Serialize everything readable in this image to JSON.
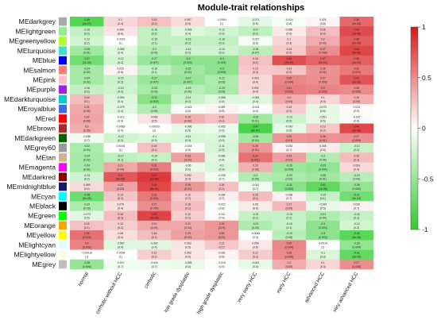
{
  "chart_data": {
    "type": "heatmap",
    "title": "Module-trait relationships",
    "columns": [
      "normal",
      "cirrhotic without HCC",
      "cirrhotic",
      "low grade dysplastic",
      "high grade dysplastic",
      "very early HCC",
      "early HCC",
      "advanced HCC",
      "very advanced HCC"
    ],
    "rows": [
      {
        "module": "MEdarkgrey",
        "color": "#a9a9a9",
        "cells": [
          [
            "-0.45",
            "(2e-07)"
          ],
          [
            "0.1",
            "(0.4)"
          ],
          [
            "0.15",
            "(0.2)"
          ],
          [
            "0.087",
            "(0.5)"
          ],
          [
            "-0.0054",
            "(1)"
          ],
          [
            "-0.071",
            "(0.5)"
          ],
          [
            "-0.024",
            "(0.8)"
          ],
          [
            "0.025",
            "(0.8)"
          ],
          [
            "0.36",
            "(2e-04)"
          ]
        ]
      },
      {
        "module": "MElightgreen",
        "color": "#90ee90",
        "cells": [
          [
            "-0.16",
            "(0.2)"
          ],
          [
            "0.064",
            "(0.6)"
          ],
          [
            "-0.16",
            "(0.2)"
          ],
          [
            "-0.093",
            "(0.4)"
          ],
          [
            "-0.12",
            "(0.3)"
          ],
          [
            "-0.17",
            "(0.1)"
          ],
          [
            "0.056",
            "(0.6)"
          ],
          [
            "0.16",
            "(0.2)"
          ],
          [
            "0.43",
            "(1e-05)"
          ]
        ]
      },
      {
        "module": "MEgreenyellow",
        "color": "#adff2f",
        "cells": [
          [
            "-0.12",
            "(0.2)"
          ],
          [
            "-0.0023",
            "(1)"
          ],
          [
            "-0.16",
            "(0.1)"
          ],
          [
            "-0.16",
            "(0.2)"
          ],
          [
            "-0.16",
            "(0.1)"
          ],
          [
            "-0.027",
            "(0.8)"
          ],
          [
            "0.1",
            "(0.3)"
          ],
          [
            "0.2",
            "(0.06)"
          ],
          [
            "0.39",
            "(9e-05)"
          ]
        ]
      },
      {
        "module": "MEturquoise",
        "color": "#40e0d0",
        "cells": [
          [
            "-0.25",
            "(0.01)"
          ],
          [
            "-0.086",
            "(0.4)"
          ],
          [
            "-0.2",
            "(0.05)"
          ],
          [
            "-0.13",
            "(0.2)"
          ],
          [
            "-0.13",
            "(0.2)"
          ],
          [
            "-0.18",
            "(0.07)"
          ],
          [
            "0.13",
            "(0.2)"
          ],
          [
            "0.27",
            "(0.008)"
          ],
          [
            "0.44",
            "(6e-06)"
          ]
        ]
      },
      {
        "module": "MEblue",
        "color": "#0000ff",
        "cells": [
          [
            "-0.37",
            "(2e-04)"
          ],
          [
            "-0.12",
            "(0.2)"
          ],
          [
            "-0.27",
            "(0.007)"
          ],
          [
            "-0.3",
            "(0.003)"
          ],
          [
            "-0.3",
            "(0.003)"
          ],
          [
            "0.15",
            "(0.1)"
          ],
          [
            "0.42",
            "(2e-05)"
          ],
          [
            "0.37",
            "(2e-04)"
          ],
          [
            "0.38",
            "(1e-04)"
          ]
        ]
      },
      {
        "module": "MEsalmon",
        "color": "#fa8072",
        "cells": [
          [
            "-0.24",
            "(0.02)"
          ],
          [
            "0.029",
            "(0.8)"
          ],
          [
            "-0.16",
            "(0.1)"
          ],
          [
            "-0.25",
            "(0.01)"
          ],
          [
            "-0.3",
            "(0.003)"
          ],
          [
            "0.13",
            "(0.2)"
          ],
          [
            "0.14",
            "(0.2)"
          ],
          [
            "0.26",
            "(0.01)"
          ],
          [
            "0.32",
            "(0.001)"
          ]
        ]
      },
      {
        "module": "MEpink",
        "color": "#ffc0cb",
        "cells": [
          [
            "-0.24",
            "(0.02)"
          ],
          [
            "-0.14",
            "(0.2)"
          ],
          [
            "-0.27",
            "(0.007)"
          ],
          [
            "-0.27",
            "(0.007)"
          ],
          [
            "-0.22",
            "(0.03)"
          ],
          [
            "0.093",
            "(0.4)"
          ],
          [
            "0.29",
            "(0.004)"
          ],
          [
            "0.27",
            "(0.008)"
          ],
          [
            "0.41",
            "(3e-05)"
          ]
        ]
      },
      {
        "module": "MEpurple",
        "color": "#a020f0",
        "cells": [
          [
            "-0.16",
            "(0.1)"
          ],
          [
            "-0.13",
            "(0.2)"
          ],
          [
            "-0.23",
            "(0.03)"
          ],
          [
            "-0.19",
            "(0.06)"
          ],
          [
            "-0.23",
            "(0.03)"
          ],
          [
            "0.092",
            "(0.4)"
          ],
          [
            "0.31",
            "(0.002)"
          ],
          [
            "0.3",
            "(0.003)"
          ],
          [
            "0.28",
            "(0.005)"
          ]
        ]
      },
      {
        "module": "MEdarkturquoise",
        "color": "#00ced1",
        "cells": [
          [
            "0.16",
            "(0.1)"
          ],
          [
            "-0.094",
            "(0.4)"
          ],
          [
            "-0.31",
            "(0.002)"
          ],
          [
            "-0.14",
            "(0.2)"
          ],
          [
            "-0.088",
            "(0.4)"
          ],
          [
            "-0.084",
            "(0.4)"
          ],
          [
            "0.2",
            "(0.04)"
          ],
          [
            "0.1",
            "(0.3)"
          ],
          [
            "0.19",
            "(0.06)"
          ]
        ]
      },
      {
        "module": "MEroyalblue",
        "color": "#4169e1",
        "cells": [
          [
            "0.21",
            "(0.04)"
          ],
          [
            "-0.079",
            "(0.4)"
          ],
          [
            "-0.2",
            "(0.05)"
          ],
          [
            "-0.023",
            "(0.8)"
          ],
          [
            "0.029",
            "(0.8)"
          ],
          [
            "-0.014",
            "(0.9)"
          ],
          [
            "0.12",
            "(0.2)"
          ],
          [
            "-0.072",
            "(0.5)"
          ],
          [
            "0.012",
            "(0.9)"
          ]
        ]
      },
      {
        "module": "MEred",
        "color": "#ff0000",
        "cells": [
          [
            "0.22",
            "(0.03)"
          ],
          [
            "-0.012",
            "(0.9)"
          ],
          [
            "0.066",
            "(0.5)"
          ],
          [
            "0.19",
            "(0.06)"
          ],
          [
            "0.15",
            "(0.1)"
          ],
          [
            "-0.25",
            "(0.01)"
          ],
          [
            "-0.13",
            "(0.2)"
          ],
          [
            "-0.061",
            "(0.5)"
          ],
          [
            "-0.022",
            "(0.8)"
          ]
        ]
      },
      {
        "module": "MEbrown",
        "color": "#a52a2a",
        "cells": [
          [
            "0.2",
            "(0.05)"
          ],
          [
            "-0.0083",
            "(0.9)"
          ],
          [
            "-0.00053",
            "(1)"
          ],
          [
            "-0.066",
            "(0.5)"
          ],
          [
            "-0.052",
            "(0.6)"
          ],
          [
            "-0.47",
            "(9e-07)"
          ],
          [
            "-0.067",
            "(0.5)"
          ],
          [
            "0.13",
            "(0.2)"
          ],
          [
            "0.44",
            "(6e-06)"
          ]
        ]
      },
      {
        "module": "MEdarkgreen",
        "color": "#006400",
        "cells": [
          [
            "-0.038",
            "(0.7)"
          ],
          [
            "-0.12",
            "(0.2)"
          ],
          [
            "-0.1",
            "(0.3)"
          ],
          [
            "-0.11",
            "(0.3)"
          ],
          [
            "-0.096",
            "(0.3)"
          ],
          [
            "-0.25",
            "(0.01)"
          ],
          [
            "0.25",
            "(0.01)"
          ],
          [
            "0.26",
            "(0.01)"
          ],
          [
            "0.27",
            "(0.008)"
          ]
        ]
      },
      {
        "module": "MEgrey60",
        "color": "#999999",
        "cells": [
          [
            "-0.22",
            "(0.03)"
          ],
          [
            "0.0045",
            "(1)"
          ],
          [
            "0.15",
            "(0.1)"
          ],
          [
            "-0.018",
            "(0.9)"
          ],
          [
            "-0.11",
            "(0.3)"
          ],
          [
            "0.25",
            "(0.01)"
          ],
          [
            "0.033",
            "(0.7)"
          ],
          [
            "0.048",
            "(0.6)"
          ],
          [
            "-0.14",
            "(0.2)"
          ]
        ]
      },
      {
        "module": "MEtan",
        "color": "#d2b48c",
        "cells": [
          [
            "-0.24",
            "(0.02)"
          ],
          [
            "-0.17",
            "(0.1)"
          ],
          [
            "-0.15",
            "(0.1)"
          ],
          [
            "0.23",
            "(0.02)"
          ],
          [
            "-0.081",
            "(0.4)"
          ],
          [
            "0.34",
            "(0.001)"
          ],
          [
            "0.23",
            "(0.02)"
          ],
          [
            "-0.2",
            "(0.06)"
          ],
          [
            "0.16",
            "(0.1)"
          ]
        ]
      },
      {
        "module": "MEmagenta",
        "color": "#ff00ff",
        "cells": [
          [
            "-0.24",
            "(0.02)"
          ],
          [
            "0.21",
            "(0.04)"
          ],
          [
            "0.31",
            "(0.002)"
          ],
          [
            "-0.06",
            "(0.6)"
          ],
          [
            "-0.1",
            "(0.3)"
          ],
          [
            "0.19",
            "(0.06)"
          ],
          [
            "-0.26",
            "(0.009)"
          ],
          [
            "-0.29",
            "(0.004)"
          ],
          [
            "0.093",
            "(0.4)"
          ]
        ]
      },
      {
        "module": "MEdarkred",
        "color": "#8b0000",
        "cells": [
          [
            "-0.13",
            "(0.2)"
          ],
          [
            "0.4",
            "(5e-05)"
          ],
          [
            "0.47",
            "(1e-06)"
          ],
          [
            "0.092",
            "(0.4)"
          ],
          [
            "-0.035",
            "(0.7)"
          ],
          [
            "-0.2",
            "(0.05)"
          ],
          [
            "-0.23",
            "(0.02)"
          ],
          [
            "-0.25",
            "(0.01)"
          ],
          [
            "-0.19",
            "(0.06)"
          ]
        ]
      },
      {
        "module": "MEmidnightblue",
        "color": "#191970",
        "cells": [
          [
            "0.089",
            "(0.4)"
          ],
          [
            "0.22",
            "(0.03)"
          ],
          [
            "0.44",
            "(6e-06)"
          ],
          [
            "0.25",
            "(0.01)"
          ],
          [
            "0.15",
            "(0.1)"
          ],
          [
            "-0.041",
            "(0.7)"
          ],
          [
            "-0.31",
            "(0.002)"
          ],
          [
            "-0.42",
            "(2e-05)"
          ],
          [
            "-0.28",
            "(0.006)"
          ]
        ]
      },
      {
        "module": "MEcyan",
        "color": "#00ffff",
        "cells": [
          [
            "-0.38",
            "(9e-05)"
          ],
          [
            "0.14",
            "(0.2)"
          ],
          [
            "0.32",
            "(0.001)"
          ],
          [
            "0.12",
            "(0.2)"
          ],
          [
            "0.038",
            "(0.7)"
          ],
          [
            "0.16",
            "(0.1)"
          ],
          [
            "0.038",
            "(0.7)"
          ],
          [
            "-0.15",
            "(0.1)"
          ],
          [
            "-0.37",
            "(2e-04)"
          ]
        ]
      },
      {
        "module": "MEblack",
        "color": "#000000",
        "cells": [
          [
            "-0.22",
            "(0.03)"
          ],
          [
            "0.079",
            "(0.4)"
          ],
          [
            "0.27",
            "(0.006)"
          ],
          [
            "0.16",
            "(0.1)"
          ],
          [
            "-0.022",
            "(0.8)"
          ],
          [
            "0.05",
            "(0.6)"
          ],
          [
            "0.17",
            "(0.09)"
          ],
          [
            "-0.064",
            "(0.5)"
          ],
          [
            "0.036",
            "(0.7)"
          ]
        ]
      },
      {
        "module": "MEgreen",
        "color": "#00ff00",
        "cells": [
          [
            "-0.073",
            "(0.5)"
          ],
          [
            "0.16",
            "(0.1)"
          ],
          [
            "0.45",
            "(3e-06)"
          ],
          [
            "0.12",
            "(0.2)"
          ],
          [
            "0.012",
            "(0.9)"
          ],
          [
            "-0.15",
            "(0.1)"
          ],
          [
            "-0.15",
            "(0.1)"
          ],
          [
            "-0.21",
            "(0.04)"
          ],
          [
            "-0.15",
            "(0.1)"
          ]
        ]
      },
      {
        "module": "MEorange",
        "color": "#ffa500",
        "cells": [
          [
            "0.15",
            "(0.1)"
          ],
          [
            "0.12",
            "(0.2)"
          ],
          [
            "0.21",
            "(0.04)"
          ],
          [
            "0.21",
            "(0.04)"
          ],
          [
            "0.25",
            "(0.01)"
          ],
          [
            "-0.21",
            "(0.03)"
          ],
          [
            "-0.15",
            "(0.1)"
          ],
          [
            "-0.3",
            "(0.003)"
          ],
          [
            "-0.12",
            "(0.2)"
          ]
        ]
      },
      {
        "module": "MEyellow",
        "color": "#ffff00",
        "cells": [
          [
            "0.34",
            "(0.001)"
          ],
          [
            "0.08",
            "(0.4)"
          ],
          [
            "0.16",
            "(0.1)"
          ],
          [
            "0.23",
            "(0.02)"
          ],
          [
            "0.25",
            "(0.01)"
          ],
          [
            "-0.0088",
            "(0.9)"
          ],
          [
            "-0.19",
            "(0.06)"
          ],
          [
            "-0.3",
            "(0.003)"
          ],
          [
            "-0.44",
            "(2e-06)"
          ]
        ]
      },
      {
        "module": "MElightcyan",
        "color": "#e0ffff",
        "cells": [
          [
            "0.3",
            "(0.002)"
          ],
          [
            "-0.087",
            "(0.4)"
          ],
          [
            "-0.087",
            "(0.4)"
          ],
          [
            "0.062",
            "(0.5)"
          ],
          [
            "0.13",
            "(0.2)"
          ],
          [
            "0.059",
            "(0.6)"
          ],
          [
            "0.29",
            "(0.004)"
          ],
          [
            "-0.0019",
            "(1)"
          ],
          [
            "-0.29",
            "(0.004)"
          ]
        ]
      },
      {
        "module": "MElightyellow",
        "color": "#ffffe0",
        "cells": [
          [
            "-0.00016",
            "(1)"
          ],
          [
            "-0.0034",
            "(1)"
          ],
          [
            "0.12",
            "(0.2)"
          ],
          [
            "0.062",
            "(0.5)"
          ],
          [
            "0.028",
            "(0.8)"
          ],
          [
            "0.12",
            "(0.2)"
          ],
          [
            "0.28",
            "(0.006)"
          ],
          [
            "-0.1",
            "(0.3)"
          ],
          [
            "-0.41",
            "(3e-05)"
          ]
        ]
      },
      {
        "module": "MEgrey",
        "color": "#bebebe",
        "cells": [
          [
            "-0.28",
            "(0.006)"
          ],
          [
            "-0.037",
            "(0.7)"
          ],
          [
            "-0.041",
            "(0.7)"
          ],
          [
            "-0.055",
            "(0.6)"
          ],
          [
            "-0.016",
            "(0.9)"
          ],
          [
            "-0.062",
            "(0.5)"
          ],
          [
            "0.2",
            "(0.05)"
          ],
          [
            "0.1",
            "(0.3)"
          ],
          [
            "0.27",
            "(0.008)"
          ]
        ]
      }
    ],
    "colorbar": {
      "ticks": [
        1,
        0.5,
        0,
        -0.5,
        -1
      ],
      "range": [
        -1,
        1
      ],
      "colors": {
        "high": "#d7191c",
        "mid": "#ffffff",
        "low": "#2ecc2e"
      }
    }
  }
}
